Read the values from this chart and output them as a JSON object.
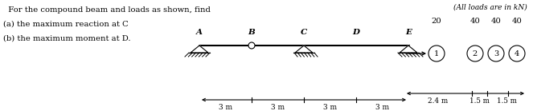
{
  "text_problem": "  For the compound beam and loads as shown, find",
  "text_a": "(a) the maximum reaction at C",
  "text_b": "(b) the maximum moment at D.",
  "text_loads_note": "(All loads are in kN)",
  "load_values": [
    "20",
    "40",
    "40",
    "40"
  ],
  "load_labels": [
    "1",
    "2",
    "3",
    "4"
  ],
  "beam_labels": [
    "A",
    "B",
    "C",
    "D",
    "E"
  ],
  "dim_beam": [
    "3 m",
    "3 m",
    "3 m",
    "3 m"
  ],
  "dim_loads": [
    "2.4 m",
    "1.5 m",
    "1.5 m"
  ],
  "bg_color": "#ffffff",
  "text_color": "#000000",
  "beam_color": "#000000",
  "figwidth": 6.63,
  "figheight": 1.39,
  "dpi": 100
}
